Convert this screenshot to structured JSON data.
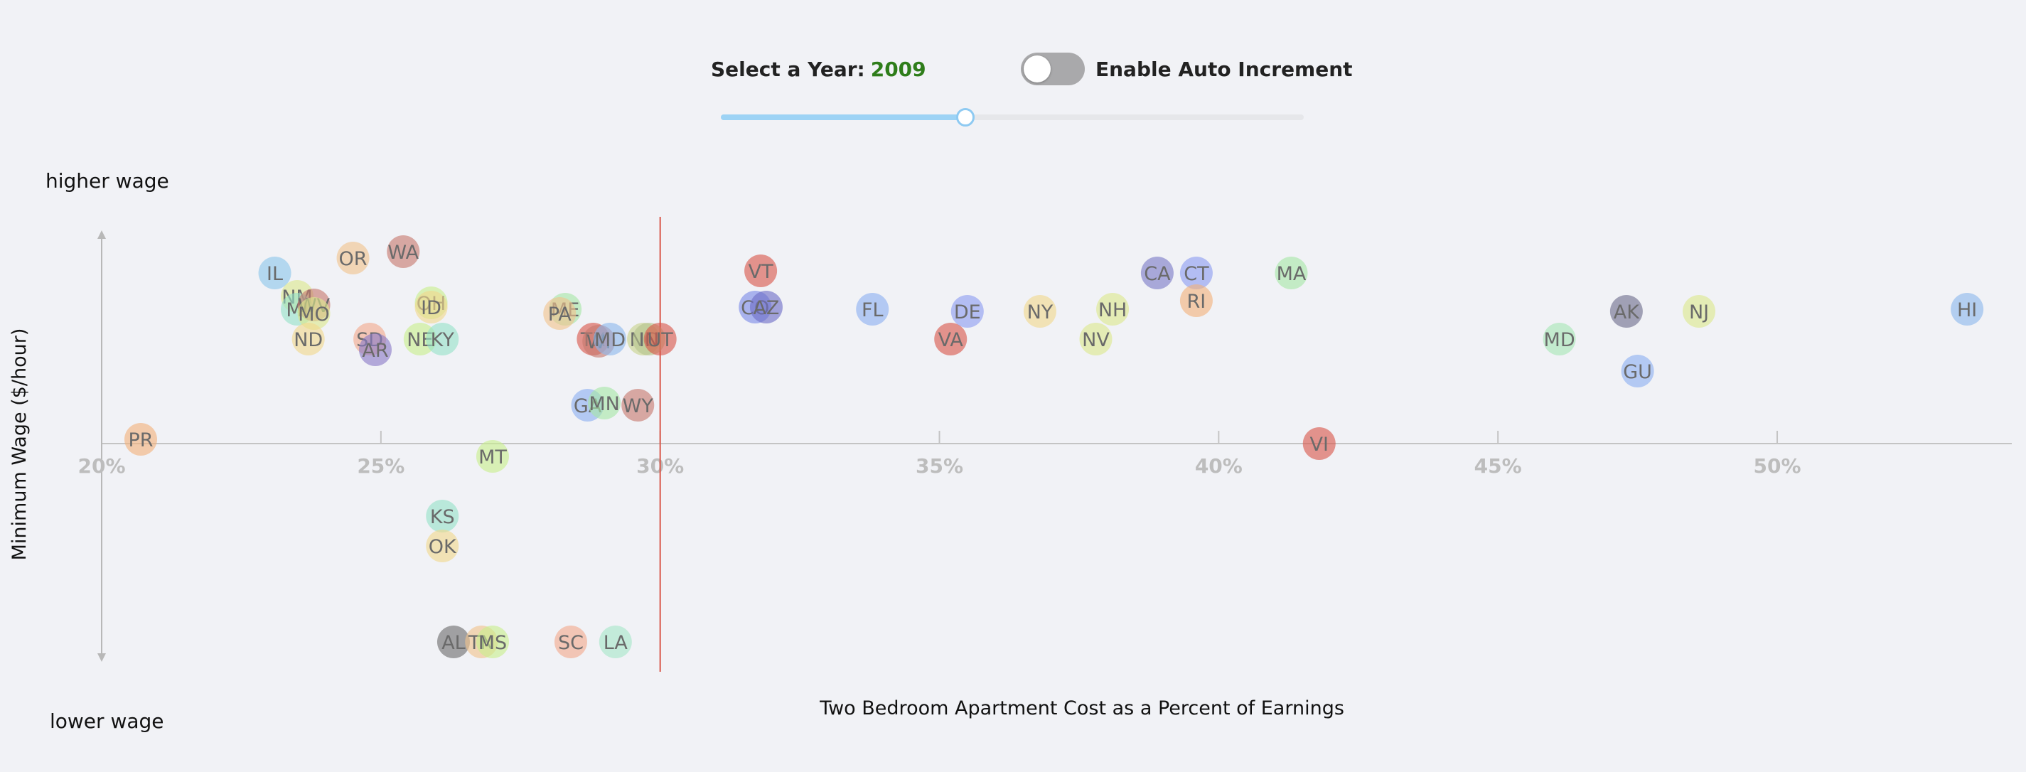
{
  "controls": {
    "year_label": "Select a Year:",
    "year_value": "2009",
    "toggle_label": "Enable Auto Increment",
    "toggle_on": false,
    "slider_fraction": 0.42
  },
  "colors": {
    "background": "#f1f2f6",
    "year_value": "#2e7d1a",
    "slider_fill": "#9dd3f5",
    "toggle_off": "#a9a9ab",
    "axis": "#b8b8b8",
    "reference_line": "#d9574a",
    "tick_text": "#bdbdbd"
  },
  "chart_data": {
    "type": "scatter",
    "xlabel": "Two Bedroom Apartment Cost as a Percent of Earnings",
    "ylabel": "Minimum Wage ($/hour)",
    "y_top_label": "higher wage",
    "y_bottom_label": "lower wage",
    "x_ticks": [
      20,
      25,
      30,
      35,
      40,
      45,
      50
    ],
    "x_tick_labels": [
      "20%",
      "25%",
      "30%",
      "35%",
      "40%",
      "45%",
      "50%"
    ],
    "xlim": [
      20,
      54.2
    ],
    "reference_x": 30,
    "points": [
      {
        "label": "PR",
        "x": 20.7,
        "y": 0.02,
        "color": "#f2b27a"
      },
      {
        "label": "IL",
        "x": 23.1,
        "y": 0.8,
        "color": "#8cc6ea"
      },
      {
        "label": "OR",
        "x": 24.5,
        "y": 0.87,
        "color": "#f0c48c"
      },
      {
        "label": "WA",
        "x": 25.4,
        "y": 0.9,
        "color": "#c7796e"
      },
      {
        "label": "NM",
        "x": 23.5,
        "y": 0.69,
        "color": "#dce98c"
      },
      {
        "label": "MI",
        "x": 23.5,
        "y": 0.63,
        "color": "#96e2c8"
      },
      {
        "label": "WV",
        "x": 23.8,
        "y": 0.65,
        "color": "#c7796e"
      },
      {
        "label": "MO",
        "x": 23.8,
        "y": 0.61,
        "color": "#dce98c"
      },
      {
        "label": "ND",
        "x": 23.7,
        "y": 0.49,
        "color": "#f0d98c"
      },
      {
        "label": "SD",
        "x": 24.8,
        "y": 0.49,
        "color": "#f2a98c"
      },
      {
        "label": "AR",
        "x": 24.9,
        "y": 0.44,
        "color": "#8a7ac6"
      },
      {
        "label": "OH",
        "x": 25.9,
        "y": 0.66,
        "color": "#c8ef8c"
      },
      {
        "label": "ID",
        "x": 25.9,
        "y": 0.64,
        "color": "#f0d98c"
      },
      {
        "label": "NE",
        "x": 25.7,
        "y": 0.49,
        "color": "#c8ef8c"
      },
      {
        "label": "KY",
        "x": 26.1,
        "y": 0.49,
        "color": "#96e2c8"
      },
      {
        "label": "ME",
        "x": 28.3,
        "y": 0.63,
        "color": "#a6e6a6"
      },
      {
        "label": "PA",
        "x": 28.2,
        "y": 0.61,
        "color": "#f0c48c"
      },
      {
        "label": "TX",
        "x": 28.8,
        "y": 0.49,
        "color": "#d9574a"
      },
      {
        "label": "WI",
        "x": 28.9,
        "y": 0.48,
        "color": "#c7796e"
      },
      {
        "label": "MD",
        "x": 29.1,
        "y": 0.49,
        "color": "#8cb8ec"
      },
      {
        "label": "NC",
        "x": 29.7,
        "y": 0.49,
        "color": "#c8d48c"
      },
      {
        "label": "IN",
        "x": 29.8,
        "y": 0.49,
        "color": "#b4c48c"
      },
      {
        "label": "UT",
        "x": 30.0,
        "y": 0.49,
        "color": "#d9574a"
      },
      {
        "label": "GA",
        "x": 28.7,
        "y": 0.18,
        "color": "#8cb0f0"
      },
      {
        "label": "MN",
        "x": 29.0,
        "y": 0.19,
        "color": "#a6e6a6"
      },
      {
        "label": "WY",
        "x": 29.6,
        "y": 0.18,
        "color": "#c7796e"
      },
      {
        "label": "MT",
        "x": 27.0,
        "y": -0.06,
        "color": "#c8ef8c"
      },
      {
        "label": "KS",
        "x": 26.1,
        "y": -0.34,
        "color": "#96e2c8"
      },
      {
        "label": "OK",
        "x": 26.1,
        "y": -0.48,
        "color": "#f0d98c"
      },
      {
        "label": "AL",
        "x": 26.3,
        "y": -0.93,
        "color": "#6e6e6e"
      },
      {
        "label": "TN",
        "x": 26.8,
        "y": -0.93,
        "color": "#f0c48c"
      },
      {
        "label": "MS",
        "x": 27.0,
        "y": -0.93,
        "color": "#c8ef8c"
      },
      {
        "label": "SC",
        "x": 28.4,
        "y": -0.93,
        "color": "#f2a98c"
      },
      {
        "label": "LA",
        "x": 29.2,
        "y": -0.93,
        "color": "#a6e6c8"
      },
      {
        "label": "VT",
        "x": 31.8,
        "y": 0.81,
        "color": "#d9574a"
      },
      {
        "label": "CO",
        "x": 31.7,
        "y": 0.64,
        "color": "#7a8ae6"
      },
      {
        "label": "AZ",
        "x": 31.9,
        "y": 0.64,
        "color": "#6e6ec6"
      },
      {
        "label": "FL",
        "x": 33.8,
        "y": 0.63,
        "color": "#8cb0f0"
      },
      {
        "label": "DE",
        "x": 35.5,
        "y": 0.62,
        "color": "#8c9cf0"
      },
      {
        "label": "VA",
        "x": 35.2,
        "y": 0.49,
        "color": "#d9574a"
      },
      {
        "label": "NY",
        "x": 36.8,
        "y": 0.62,
        "color": "#f0d98c"
      },
      {
        "label": "NH",
        "x": 38.1,
        "y": 0.63,
        "color": "#dce98c"
      },
      {
        "label": "NV",
        "x": 37.8,
        "y": 0.49,
        "color": "#dce98c"
      },
      {
        "label": "CA",
        "x": 38.9,
        "y": 0.8,
        "color": "#7a7ac6"
      },
      {
        "label": "CT",
        "x": 39.6,
        "y": 0.8,
        "color": "#8c9cf0"
      },
      {
        "label": "RI",
        "x": 39.6,
        "y": 0.67,
        "color": "#f2b27a"
      },
      {
        "label": "MA",
        "x": 41.3,
        "y": 0.8,
        "color": "#a6e6a6"
      },
      {
        "label": "VI",
        "x": 41.8,
        "y": 0.0,
        "color": "#d9574a"
      },
      {
        "label": "MD",
        "x": 46.1,
        "y": 0.49,
        "color": "#a6e6b4"
      },
      {
        "label": "AK",
        "x": 47.3,
        "y": 0.62,
        "color": "#6e6e8c"
      },
      {
        "label": "GU",
        "x": 47.5,
        "y": 0.34,
        "color": "#8cb0f0"
      },
      {
        "label": "NJ",
        "x": 48.6,
        "y": 0.62,
        "color": "#dce98c"
      },
      {
        "label": "HI",
        "x": 53.4,
        "y": 0.63,
        "color": "#8cb8ec"
      }
    ]
  }
}
